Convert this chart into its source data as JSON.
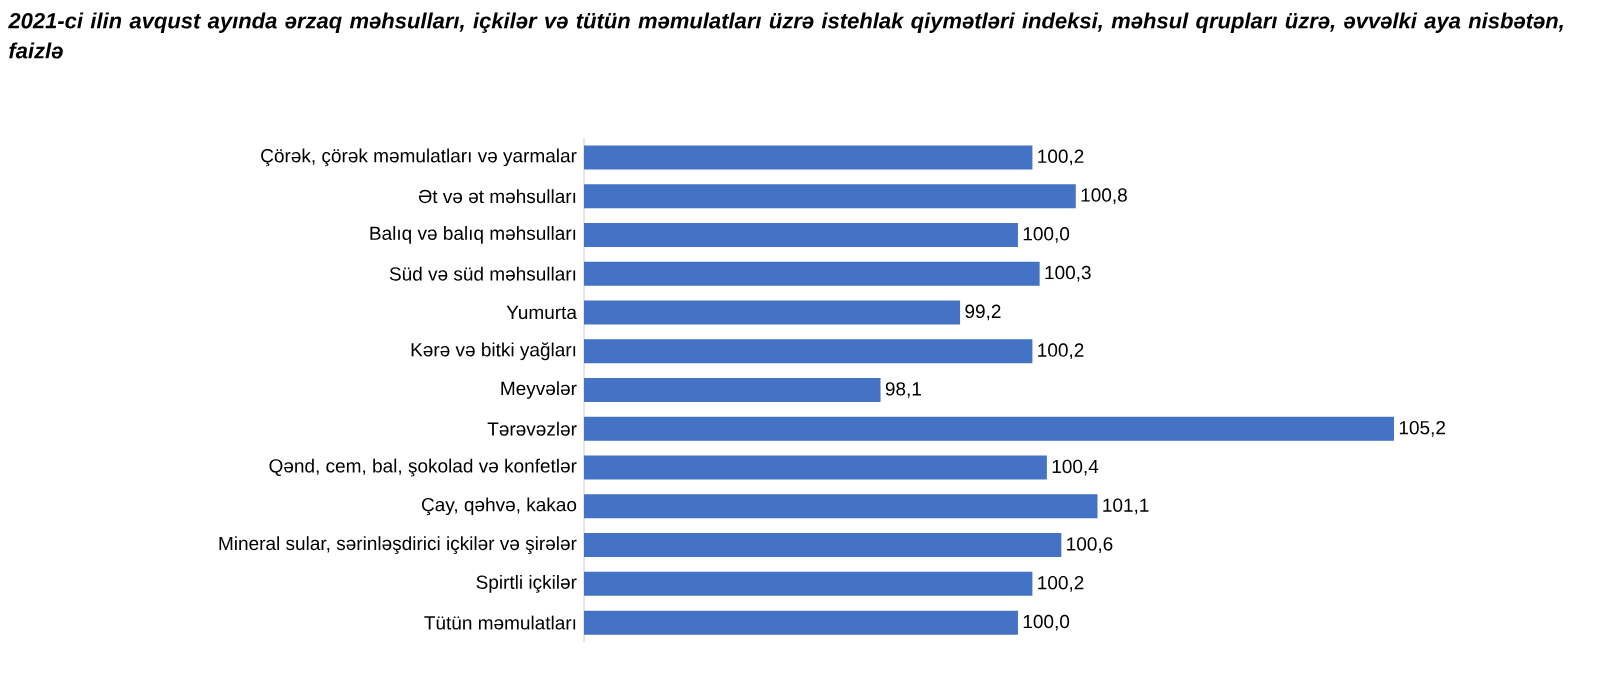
{
  "chart_data": {
    "type": "bar",
    "orientation": "horizontal",
    "title": "2021-ci ilin avqust ayında ərzaq məhsulları, içkilər və tütün məmulatları üzrə istehlak qiymətləri indeksi, məhsul qrupları üzrə, əvvəlki aya nisbətən, faizlə",
    "categories": [
      "Çörək, çörək məmulatları və yarmalar",
      "Ət və ət məhsulları",
      "Balıq və balıq məhsulları",
      "Süd və süd məhsulları",
      "Yumurta",
      "Kərə və bitki yağları",
      "Meyvələr",
      "Tərəvəzlər",
      "Qənd, cem, bal, şokolad və konfetlər",
      "Çay, qəhvə, kakao",
      "Mineral sular, sərinləşdirici içkilər və şirələr",
      "Spirtli içkilər",
      "Tütün məmulatları"
    ],
    "values": [
      100.2,
      100.8,
      100.0,
      100.3,
      99.2,
      100.2,
      98.1,
      105.2,
      100.4,
      101.1,
      100.6,
      100.2,
      100.0
    ],
    "value_labels": [
      "100,2",
      "100,8",
      "100,0",
      "100,3",
      "99,2",
      "100,2",
      "98,1",
      "105,2",
      "100,4",
      "101,1",
      "100,6",
      "100,2",
      "100,0"
    ],
    "color": "#4472c4",
    "xlim": [
      94,
      105.2
    ],
    "tick_labels": "y"
  }
}
